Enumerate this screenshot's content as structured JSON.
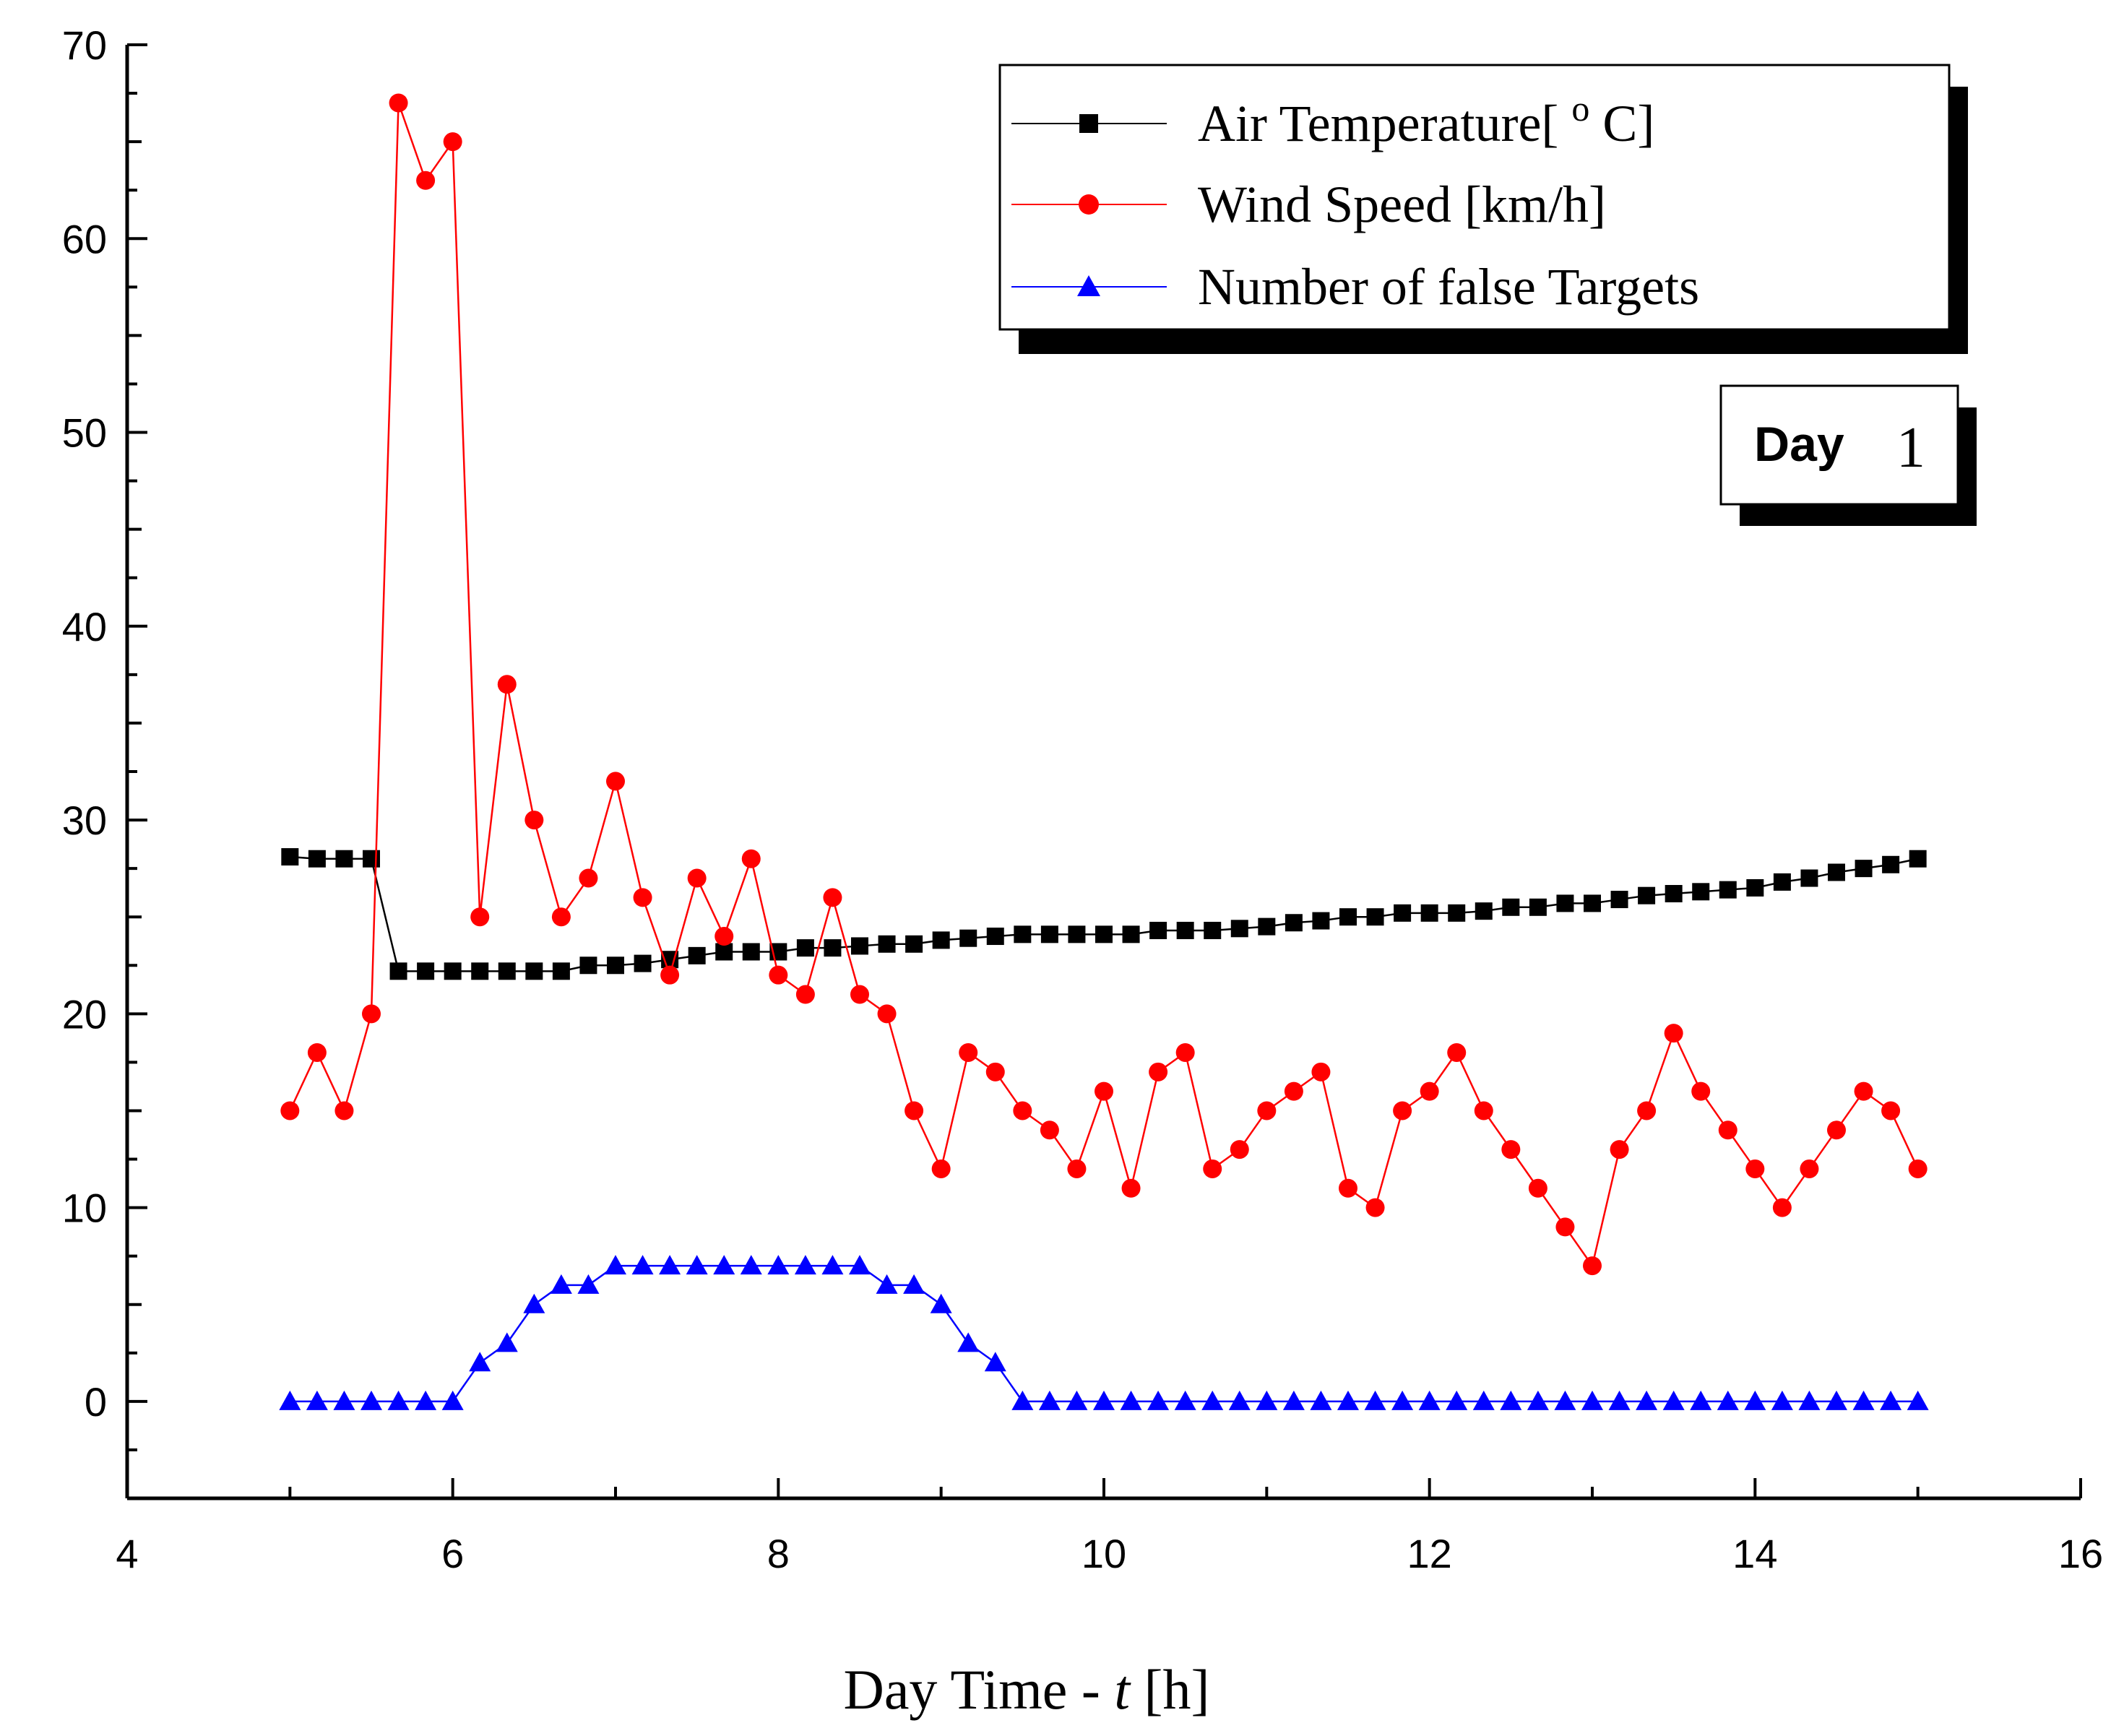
{
  "chart_data": {
    "type": "line",
    "title": "",
    "xlabel_prefix": "Day Time - ",
    "xlabel_var": "t",
    "xlabel_suffix": " [h]",
    "ylabel": "",
    "xlim": [
      4,
      16
    ],
    "ylim": [
      -5,
      70
    ],
    "x_ticks": [
      4,
      6,
      8,
      10,
      12,
      14,
      16
    ],
    "x_tick_labels": [
      "4",
      "6",
      "8",
      "10",
      "12",
      "14",
      "16"
    ],
    "y_ticks": [
      0,
      10,
      20,
      30,
      40,
      50,
      60,
      70
    ],
    "y_tick_labels": [
      "0",
      "10",
      "20",
      "30",
      "40",
      "50",
      "60",
      "70"
    ],
    "grid": false,
    "legend_position": "top-right",
    "annotation": {
      "bold_text": "Day",
      "serif_text": "1",
      "position": "upper-right"
    },
    "x": [
      5.0,
      5.1667,
      5.3333,
      5.5,
      5.6667,
      5.8333,
      6.0,
      6.1667,
      6.3333,
      6.5,
      6.6667,
      6.8333,
      7.0,
      7.1667,
      7.3333,
      7.5,
      7.6667,
      7.8333,
      8.0,
      8.1667,
      8.3333,
      8.5,
      8.6667,
      8.8333,
      9.0,
      9.1667,
      9.3333,
      9.5,
      9.6667,
      9.8333,
      10.0,
      10.1667,
      10.3333,
      10.5,
      10.6667,
      10.8333,
      11.0,
      11.1667,
      11.3333,
      11.5,
      11.6667,
      11.8333,
      12.0,
      12.1667,
      12.3333,
      12.5,
      12.6667,
      12.8333,
      13.0,
      13.1667,
      13.3333,
      13.5,
      13.6667,
      13.8333,
      14.0,
      14.1667,
      14.3333,
      14.5,
      14.6667,
      14.8333,
      15.0
    ],
    "series": [
      {
        "name": "Air Temperature",
        "legend_main": "Air Temperature[ ",
        "legend_sup": "o",
        "legend_tail": " C]",
        "color": "#000000",
        "marker": "square",
        "values": [
          28.1,
          28.0,
          28.0,
          28.0,
          22.2,
          22.2,
          22.2,
          22.2,
          22.2,
          22.2,
          22.2,
          22.5,
          22.5,
          22.6,
          22.8,
          23.0,
          23.2,
          23.2,
          23.2,
          23.4,
          23.4,
          23.5,
          23.6,
          23.6,
          23.8,
          23.9,
          24.0,
          24.1,
          24.1,
          24.1,
          24.1,
          24.1,
          24.3,
          24.3,
          24.3,
          24.4,
          24.5,
          24.7,
          24.8,
          25.0,
          25.0,
          25.2,
          25.2,
          25.2,
          25.3,
          25.5,
          25.5,
          25.7,
          25.7,
          25.9,
          26.1,
          26.2,
          26.3,
          26.4,
          26.5,
          26.8,
          27.0,
          27.3,
          27.5,
          27.7,
          28.0
        ]
      },
      {
        "name": "Wind Speed",
        "legend_main": "Wind Speed [km/h]",
        "color": "#ff0000",
        "marker": "circle",
        "values": [
          15,
          18,
          15,
          20,
          67,
          63,
          65,
          25,
          37,
          30,
          25,
          27,
          32,
          26,
          22,
          27,
          24,
          28,
          22,
          21,
          26,
          21,
          20,
          15,
          12,
          18,
          17,
          15,
          14,
          12,
          16,
          11,
          17,
          18,
          12,
          13,
          15,
          16,
          17,
          11,
          10,
          15,
          16,
          18,
          15,
          13,
          11,
          9,
          7,
          13,
          15,
          19,
          16,
          14,
          12,
          10,
          12,
          14,
          16,
          15,
          12
        ]
      },
      {
        "name": "Number of false Targets",
        "legend_main": "Number of false Targets",
        "color": "#0000ff",
        "marker": "triangle",
        "values": [
          0,
          0,
          0,
          0,
          0,
          0,
          0,
          2,
          3,
          5,
          6,
          6,
          7,
          7,
          7,
          7,
          7,
          7,
          7,
          7,
          7,
          7,
          6,
          6,
          5,
          3,
          2,
          0,
          0,
          0,
          0,
          0,
          0,
          0,
          0,
          0,
          0,
          0,
          0,
          0,
          0,
          0,
          0,
          0,
          0,
          0,
          0,
          0,
          0,
          0,
          0,
          0,
          0,
          0,
          0,
          0,
          0,
          0,
          0,
          0,
          0
        ]
      }
    ]
  }
}
